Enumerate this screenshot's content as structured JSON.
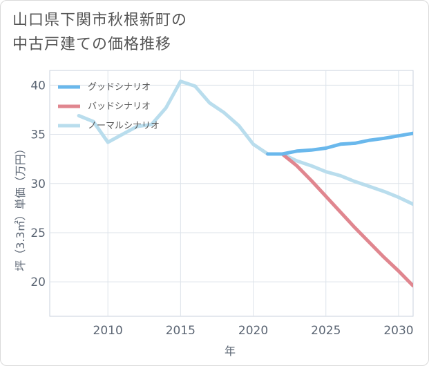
{
  "title_line1": "山口県下関市秋根新町の",
  "title_line2": "中古戸建ての価格推移",
  "colors": {
    "good": "#6ab8ec",
    "bad": "#e0868f",
    "normal": "#b9dded",
    "grid": "#dde3ea",
    "text": "#5b6573"
  },
  "chart_data": {
    "type": "line",
    "title": "山口県下関市秋根新町の中古戸建ての価格推移",
    "xlabel": "年",
    "ylabel": "坪（3.3㎡）単価（万円）",
    "xlim": [
      2006,
      2031
    ],
    "ylim": [
      16.5,
      41.5
    ],
    "xticks": [
      2010,
      2015,
      2020,
      2025,
      2030
    ],
    "yticks": [
      20,
      25,
      30,
      35,
      40
    ],
    "legend_position": "top-left",
    "series": [
      {
        "name": "グッドシナリオ",
        "color": "#6ab8ec",
        "x": [
          2021,
          2022,
          2023,
          2024,
          2025,
          2026,
          2027,
          2028,
          2029,
          2030,
          2031
        ],
        "y": [
          33.0,
          33.0,
          33.3,
          33.4,
          33.6,
          34.0,
          34.1,
          34.4,
          34.6,
          34.85,
          35.1
        ]
      },
      {
        "name": "バッドシナリオ",
        "color": "#e0868f",
        "x": [
          2021,
          2022,
          2023,
          2024,
          2025,
          2026,
          2027,
          2028,
          2029,
          2030,
          2031
        ],
        "y": [
          33.0,
          33.0,
          31.8,
          30.3,
          28.7,
          27.1,
          25.5,
          24.0,
          22.5,
          21.1,
          19.6
        ]
      },
      {
        "name": "ノーマルシナリオ",
        "color": "#b9dded",
        "x": [
          2008,
          2009,
          2010,
          2011,
          2012,
          2013,
          2014,
          2015,
          2016,
          2017,
          2018,
          2019,
          2020,
          2021,
          2022,
          2023,
          2024,
          2025,
          2026,
          2027,
          2028,
          2029,
          2030,
          2031
        ],
        "y": [
          36.9,
          36.3,
          34.2,
          35.0,
          35.8,
          36.0,
          37.7,
          40.4,
          39.9,
          38.2,
          37.2,
          35.9,
          34.0,
          33.0,
          33.0,
          32.3,
          31.8,
          31.2,
          30.8,
          30.2,
          29.7,
          29.2,
          28.6,
          27.9
        ]
      }
    ]
  }
}
